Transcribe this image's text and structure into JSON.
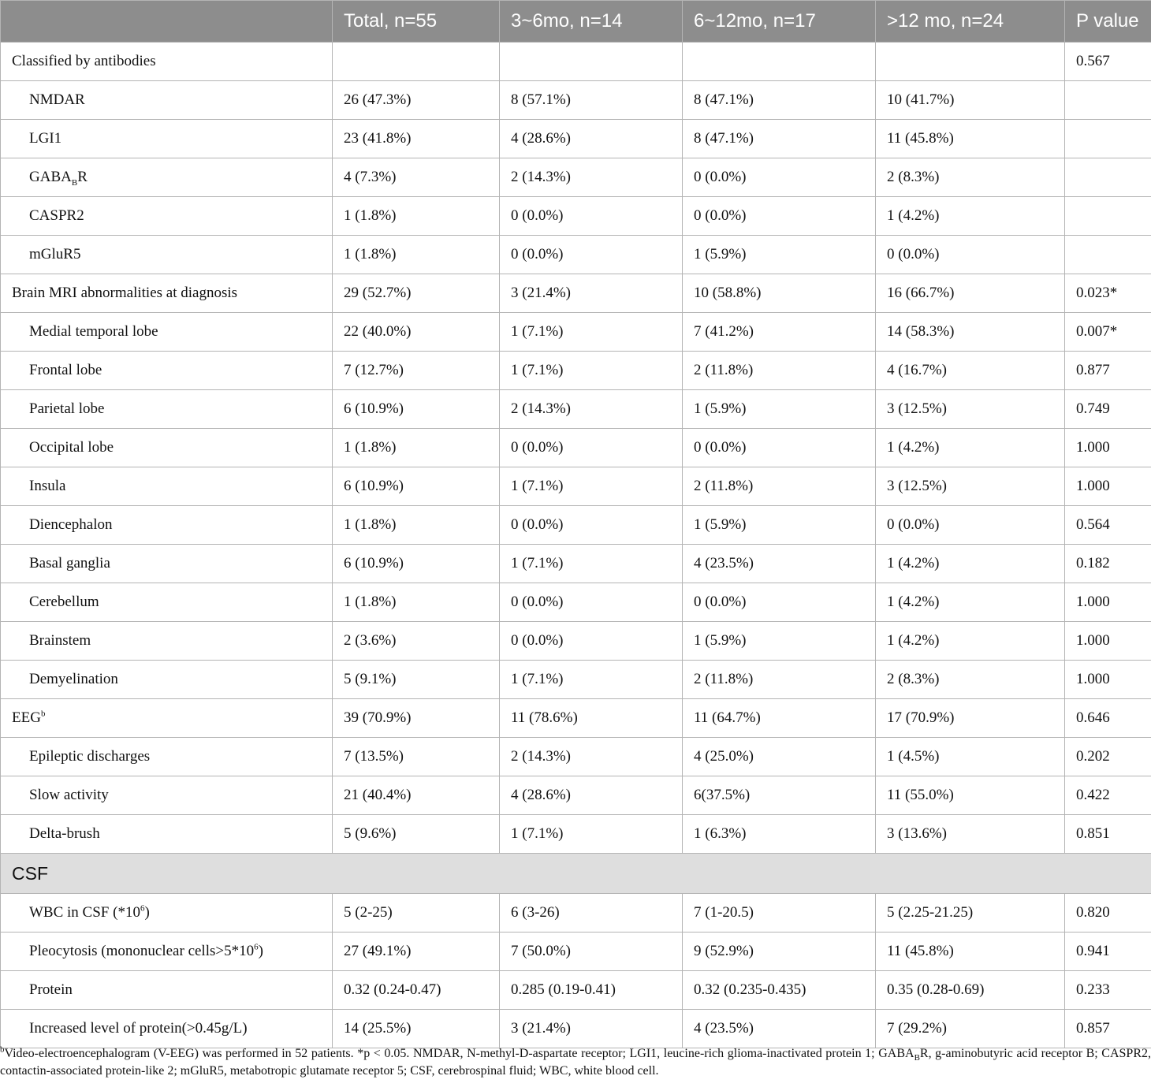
{
  "table": {
    "headers": [
      "",
      "Total, n=55",
      "3~6mo, n=14",
      "6~12mo, n=17",
      ">12 mo, n=24",
      "P value"
    ],
    "rows": [
      {
        "label": "Classified by antibodies",
        "indent": false,
        "cells": [
          "",
          "",
          "",
          "",
          "0.567"
        ]
      },
      {
        "label": "NMDAR",
        "indent": true,
        "cells": [
          "26 (47.3%)",
          "8 (57.1%)",
          "8 (47.1%)",
          "10 (41.7%)",
          ""
        ]
      },
      {
        "label": "LGI1",
        "indent": true,
        "cells": [
          "23 (41.8%)",
          "4 (28.6%)",
          "8 (47.1%)",
          "11 (45.8%)",
          ""
        ]
      },
      {
        "label": "GABA",
        "label_sub": "B",
        "label_after": "R",
        "indent": true,
        "cells": [
          "4 (7.3%)",
          "2 (14.3%)",
          "0 (0.0%)",
          "2 (8.3%)",
          ""
        ]
      },
      {
        "label": "CASPR2",
        "indent": true,
        "cells": [
          "1 (1.8%)",
          "0 (0.0%)",
          "0 (0.0%)",
          "1 (4.2%)",
          ""
        ]
      },
      {
        "label": "mGluR5",
        "indent": true,
        "cells": [
          "1 (1.8%)",
          "0 (0.0%)",
          "1 (5.9%)",
          "0 (0.0%)",
          ""
        ]
      },
      {
        "label": "Brain MRI abnormalities at diagnosis",
        "indent": false,
        "cells": [
          "29 (52.7%)",
          "3 (21.4%)",
          "10 (58.8%)",
          "16 (66.7%)",
          "0.023*"
        ]
      },
      {
        "label": "Medial temporal lobe",
        "indent": true,
        "cells": [
          "22 (40.0%)",
          "1 (7.1%)",
          "7 (41.2%)",
          "14 (58.3%)",
          "0.007*"
        ]
      },
      {
        "label": "Frontal lobe",
        "indent": true,
        "cells": [
          "7 (12.7%)",
          "1 (7.1%)",
          "2 (11.8%)",
          "4 (16.7%)",
          "0.877"
        ]
      },
      {
        "label": "Parietal lobe",
        "indent": true,
        "cells": [
          "6 (10.9%)",
          "2 (14.3%)",
          "1 (5.9%)",
          "3 (12.5%)",
          "0.749"
        ]
      },
      {
        "label": "Occipital lobe",
        "indent": true,
        "cells": [
          "1 (1.8%)",
          "0 (0.0%)",
          "0 (0.0%)",
          "1 (4.2%)",
          "1.000"
        ]
      },
      {
        "label": "Insula",
        "indent": true,
        "cells": [
          "6 (10.9%)",
          "1 (7.1%)",
          "2 (11.8%)",
          "3 (12.5%)",
          "1.000"
        ]
      },
      {
        "label": "Diencephalon",
        "indent": true,
        "cells": [
          "1 (1.8%)",
          "0 (0.0%)",
          "1 (5.9%)",
          "0 (0.0%)",
          "0.564"
        ]
      },
      {
        "label": "Basal ganglia",
        "indent": true,
        "cells": [
          "6 (10.9%)",
          "1 (7.1%)",
          "4 (23.5%)",
          "1 (4.2%)",
          "0.182"
        ]
      },
      {
        "label": "Cerebellum",
        "indent": true,
        "cells": [
          "1 (1.8%)",
          "0 (0.0%)",
          "0 (0.0%)",
          "1 (4.2%)",
          "1.000"
        ]
      },
      {
        "label": "Brainstem",
        "indent": true,
        "cells": [
          "2 (3.6%)",
          "0 (0.0%)",
          "1 (5.9%)",
          "1 (4.2%)",
          "1.000"
        ]
      },
      {
        "label": "Demyelination",
        "indent": true,
        "cells": [
          "5 (9.1%)",
          "1 (7.1%)",
          "2 (11.8%)",
          "2 (8.3%)",
          "1.000"
        ]
      },
      {
        "label": "EEG",
        "label_sup": "b",
        "indent": false,
        "cells": [
          "39 (70.9%)",
          "11 (78.6%)",
          "11 (64.7%)",
          "17 (70.9%)",
          "0.646"
        ]
      },
      {
        "label": "Epileptic discharges",
        "indent": true,
        "cells": [
          "7 (13.5%)",
          "2 (14.3%)",
          "4 (25.0%)",
          "1 (4.5%)",
          "0.202"
        ]
      },
      {
        "label": "Slow activity",
        "indent": true,
        "cells": [
          "21 (40.4%)",
          "4 (28.6%)",
          "6(37.5%)",
          "11 (55.0%)",
          "0.422"
        ]
      },
      {
        "label": "Delta-brush",
        "indent": true,
        "cells": [
          "5 (9.6%)",
          "1 (7.1%)",
          "1 (6.3%)",
          "3 (13.6%)",
          "0.851"
        ]
      },
      {
        "section": "CSF"
      },
      {
        "label": "WBC in CSF (*10",
        "label_sup": "6",
        "label_after": ")",
        "indent": true,
        "cells": [
          "5 (2-25)",
          "6 (3-26)",
          "7 (1-20.5)",
          "5 (2.25-21.25)",
          "0.820"
        ]
      },
      {
        "label": "Pleocytosis (mononuclear cells>5*10",
        "label_sup": "6",
        "label_after": ")",
        "indent": true,
        "cells": [
          "27 (49.1%)",
          "7 (50.0%)",
          "9 (52.9%)",
          "11 (45.8%)",
          "0.941"
        ]
      },
      {
        "label": "Protein",
        "indent": true,
        "cells": [
          "0.32 (0.24-0.47)",
          "0.285 (0.19-0.41)",
          "0.32 (0.235-0.435)",
          "0.35 (0.28-0.69)",
          "0.233"
        ]
      },
      {
        "label": "Increased level of protein(>0.45g/L)",
        "indent": true,
        "cells": [
          "14 (25.5%)",
          "3 (21.4%)",
          "4 (23.5%)",
          "7 (29.2%)",
          "0.857"
        ]
      }
    ]
  },
  "footnote": {
    "marker": "b",
    "part1": "Video-electroencephalogram (V-EEG) was performed in 52 patients. *p < 0.05. NMDAR, N-methyl-D-aspartate receptor; LGI1, leucine-rich glioma-inactivated protein 1; GABA",
    "sub": "B",
    "part2": "R, g-aminobutyric acid receptor B; CASPR2, contactin-associated protein-like 2; mGluR5, metabotropic glutamate receptor 5; CSF, cerebrospinal fluid; WBC, white blood cell."
  }
}
